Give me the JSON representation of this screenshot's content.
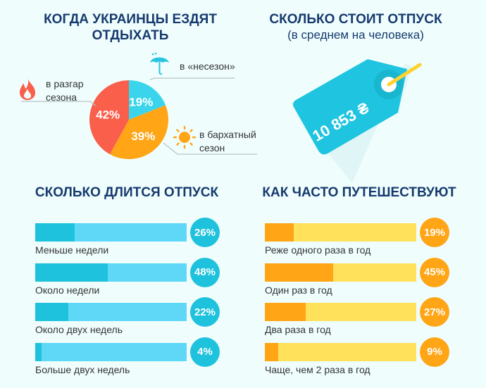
{
  "colors": {
    "title": "#173a6e",
    "cyan_dark": "#1fc2dc",
    "cyan_light": "#5fd8f7",
    "orange": "#ffa516",
    "yellow": "#ffe15c",
    "red": "#f95f4b",
    "pie_cyan": "#3ad5ec"
  },
  "chart_data": [
    {
      "type": "pie",
      "title": "КОГДА УКРАИНЦЫ ЕЗДЯТ ОТДЫХАТЬ",
      "slices": [
        {
          "label": "в «несезон»",
          "value": 19,
          "text": "19%",
          "icon": "umbrella-icon"
        },
        {
          "label": "в бархатный сезон",
          "value": 39,
          "text": "39%",
          "icon": "sun-icon"
        },
        {
          "label": "в разгар сезона",
          "value": 42,
          "text": "42%",
          "icon": "fire-icon"
        }
      ]
    },
    {
      "type": "bar",
      "title": "СКОЛЬКО ДЛИТСЯ ОТПУСК",
      "categories": [
        "Меньше недели",
        "Около недели",
        "Около двух недель",
        "Больше двух недель"
      ],
      "values": [
        26,
        48,
        22,
        4
      ],
      "labels": [
        "26%",
        "48%",
        "22%",
        "4%"
      ],
      "ylim": [
        0,
        100
      ]
    },
    {
      "type": "bar",
      "title": "КАК ЧАСТО ПУТЕШЕСТВУЮТ",
      "categories": [
        "Реже одного раза в год",
        "Один раз в год",
        "Два раза в год",
        "Чаще, чем 2 раза в год"
      ],
      "values": [
        19,
        45,
        27,
        9
      ],
      "labels": [
        "19%",
        "45%",
        "27%",
        "9%"
      ],
      "ylim": [
        0,
        100
      ]
    }
  ],
  "cost": {
    "title": "СКОЛЬКО СТОИТ ОТПУСК",
    "subtitle": "(в среднем на человека)",
    "value": "10 853 ₴",
    "icon": "price-tag-icon"
  }
}
